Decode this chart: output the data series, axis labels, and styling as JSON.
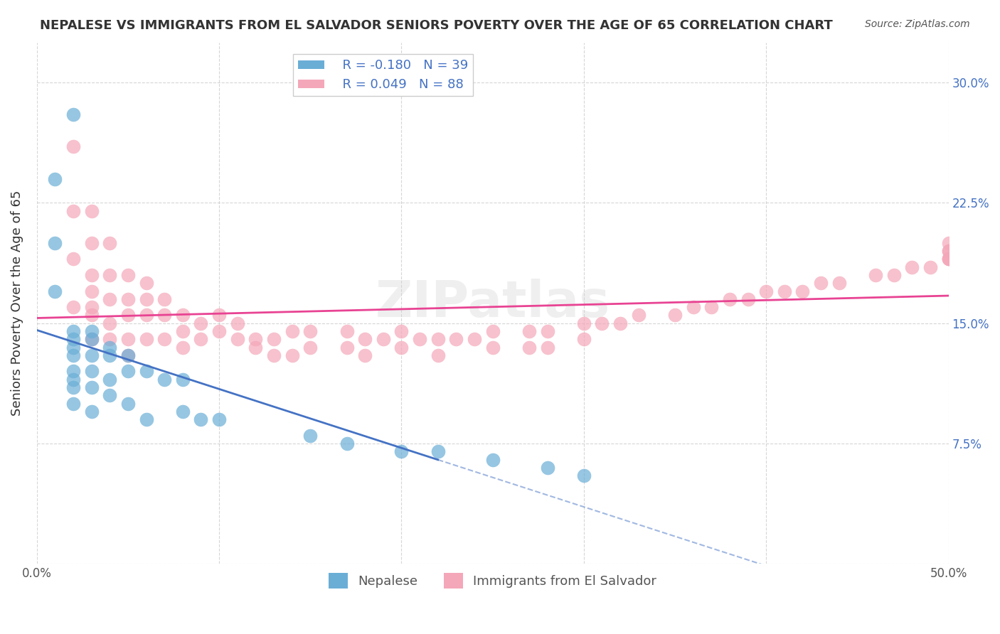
{
  "title": "NEPALESE VS IMMIGRANTS FROM EL SALVADOR SENIORS POVERTY OVER THE AGE OF 65 CORRELATION CHART",
  "source": "Source: ZipAtlas.com",
  "ylabel": "Seniors Poverty Over the Age of 65",
  "xlabel": "",
  "xlim": [
    0.0,
    0.5
  ],
  "ylim": [
    0.0,
    0.325
  ],
  "yticks": [
    0.0,
    0.075,
    0.15,
    0.225,
    0.3
  ],
  "ytick_labels": [
    "",
    "7.5%",
    "15.0%",
    "22.5%",
    "30.0%"
  ],
  "xticks": [
    0.0,
    0.1,
    0.2,
    0.3,
    0.4,
    0.5
  ],
  "xtick_labels": [
    "0.0%",
    "",
    "",
    "",
    "",
    "50.0%"
  ],
  "right_ytick_labels": [
    "7.5%",
    "15.0%",
    "22.5%",
    "30.0%"
  ],
  "legend_R1": "R = -0.180",
  "legend_N1": "N = 39",
  "legend_R2": "R = 0.049",
  "legend_N2": "N = 88",
  "color_nepalese": "#6aaed6",
  "color_salvador": "#f4a7b9",
  "color_nepalese_line": "#4472c4",
  "color_salvador_line": "#e84393",
  "watermark": "ZIPatlas",
  "background_color": "#ffffff",
  "grid_color": "#cccccc",
  "nepalese_x": [
    0.02,
    0.01,
    0.01,
    0.01,
    0.02,
    0.02,
    0.02,
    0.02,
    0.02,
    0.02,
    0.02,
    0.02,
    0.03,
    0.03,
    0.03,
    0.03,
    0.03,
    0.03,
    0.04,
    0.04,
    0.04,
    0.04,
    0.05,
    0.05,
    0.05,
    0.06,
    0.06,
    0.07,
    0.08,
    0.08,
    0.09,
    0.1,
    0.15,
    0.17,
    0.2,
    0.22,
    0.25,
    0.28,
    0.3
  ],
  "nepalese_y": [
    0.28,
    0.24,
    0.2,
    0.17,
    0.145,
    0.14,
    0.135,
    0.13,
    0.12,
    0.115,
    0.11,
    0.1,
    0.145,
    0.14,
    0.13,
    0.12,
    0.11,
    0.095,
    0.135,
    0.13,
    0.115,
    0.105,
    0.13,
    0.12,
    0.1,
    0.12,
    0.09,
    0.115,
    0.115,
    0.095,
    0.09,
    0.09,
    0.08,
    0.075,
    0.07,
    0.07,
    0.065,
    0.06,
    0.055
  ],
  "salvador_x": [
    0.02,
    0.02,
    0.02,
    0.02,
    0.03,
    0.03,
    0.03,
    0.03,
    0.03,
    0.03,
    0.03,
    0.04,
    0.04,
    0.04,
    0.04,
    0.04,
    0.05,
    0.05,
    0.05,
    0.05,
    0.05,
    0.06,
    0.06,
    0.06,
    0.06,
    0.07,
    0.07,
    0.07,
    0.08,
    0.08,
    0.08,
    0.09,
    0.09,
    0.1,
    0.1,
    0.11,
    0.11,
    0.12,
    0.12,
    0.13,
    0.13,
    0.14,
    0.14,
    0.15,
    0.15,
    0.17,
    0.17,
    0.18,
    0.18,
    0.19,
    0.2,
    0.2,
    0.21,
    0.22,
    0.22,
    0.23,
    0.24,
    0.25,
    0.25,
    0.27,
    0.27,
    0.28,
    0.28,
    0.3,
    0.3,
    0.31,
    0.32,
    0.33,
    0.35,
    0.36,
    0.37,
    0.38,
    0.39,
    0.4,
    0.41,
    0.42,
    0.43,
    0.44,
    0.46,
    0.47,
    0.48,
    0.49,
    0.5,
    0.5,
    0.51,
    0.52,
    0.53,
    0.55
  ],
  "salvador_y": [
    0.26,
    0.22,
    0.19,
    0.16,
    0.22,
    0.2,
    0.18,
    0.17,
    0.16,
    0.155,
    0.14,
    0.2,
    0.18,
    0.165,
    0.15,
    0.14,
    0.18,
    0.165,
    0.155,
    0.14,
    0.13,
    0.175,
    0.165,
    0.155,
    0.14,
    0.165,
    0.155,
    0.14,
    0.155,
    0.145,
    0.135,
    0.15,
    0.14,
    0.155,
    0.145,
    0.15,
    0.14,
    0.14,
    0.135,
    0.14,
    0.13,
    0.145,
    0.13,
    0.145,
    0.135,
    0.145,
    0.135,
    0.14,
    0.13,
    0.14,
    0.145,
    0.135,
    0.14,
    0.14,
    0.13,
    0.14,
    0.14,
    0.145,
    0.135,
    0.145,
    0.135,
    0.145,
    0.135,
    0.15,
    0.14,
    0.15,
    0.15,
    0.155,
    0.155,
    0.16,
    0.16,
    0.165,
    0.165,
    0.17,
    0.17,
    0.17,
    0.175,
    0.175,
    0.18,
    0.18,
    0.185,
    0.185,
    0.19,
    0.19,
    0.19,
    0.195,
    0.195,
    0.2
  ]
}
